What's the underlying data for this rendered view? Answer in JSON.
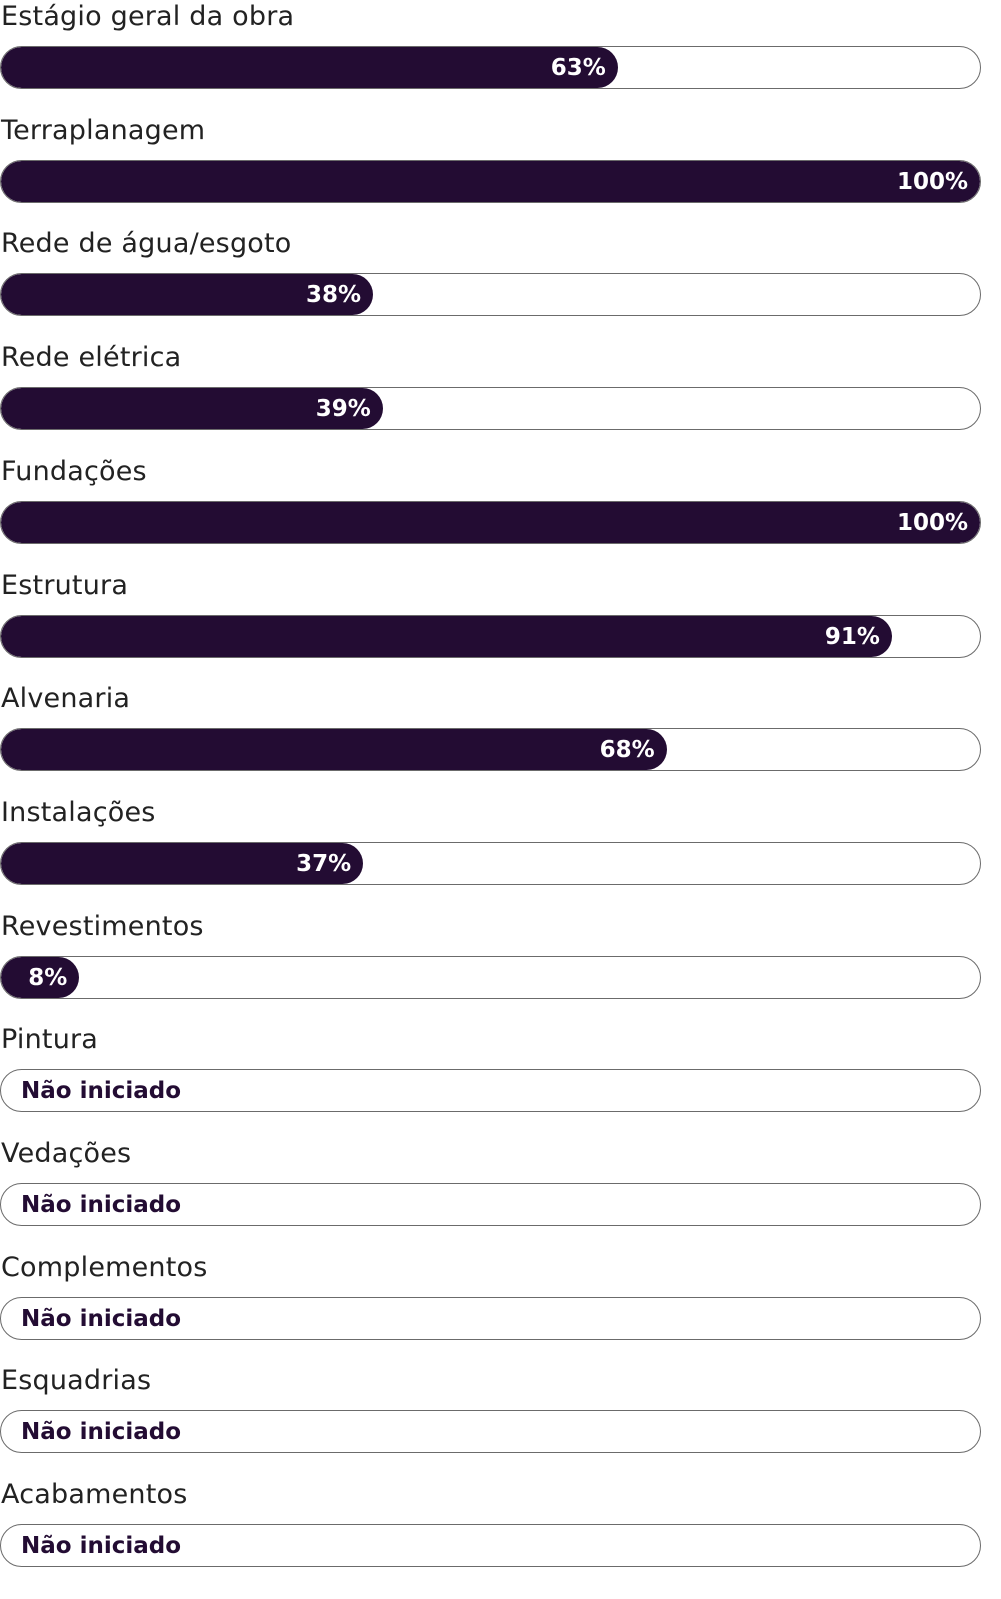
{
  "colors": {
    "fill": "#230c33",
    "track_border": "#6b6b6b",
    "label_text": "#222222",
    "fill_text": "#ffffff"
  },
  "stages": [
    {
      "label": "Estágio geral da obra",
      "progress": 63,
      "progress_label": "63%"
    },
    {
      "label": "Terraplanagem",
      "progress": 100,
      "progress_label": "100%"
    },
    {
      "label": "Rede de água/esgoto",
      "progress": 38,
      "progress_label": "38%"
    },
    {
      "label": "Rede elétrica",
      "progress": 39,
      "progress_label": "39%"
    },
    {
      "label": "Fundações",
      "progress": 100,
      "progress_label": "100%"
    },
    {
      "label": "Estrutura",
      "progress": 91,
      "progress_label": "91%"
    },
    {
      "label": "Alvenaria",
      "progress": 68,
      "progress_label": "68%"
    },
    {
      "label": "Instalações",
      "progress": 37,
      "progress_label": "37%"
    },
    {
      "label": "Revestimentos",
      "progress": 8,
      "progress_label": "8%"
    },
    {
      "label": "Pintura",
      "progress": 0,
      "status_label": "Não iniciado"
    },
    {
      "label": "Vedações",
      "progress": 0,
      "status_label": "Não iniciado"
    },
    {
      "label": "Complementos",
      "progress": 0,
      "status_label": "Não iniciado"
    },
    {
      "label": "Esquadrias",
      "progress": 0,
      "status_label": "Não iniciado"
    },
    {
      "label": "Acabamentos",
      "progress": 0,
      "status_label": "Não iniciado"
    }
  ]
}
